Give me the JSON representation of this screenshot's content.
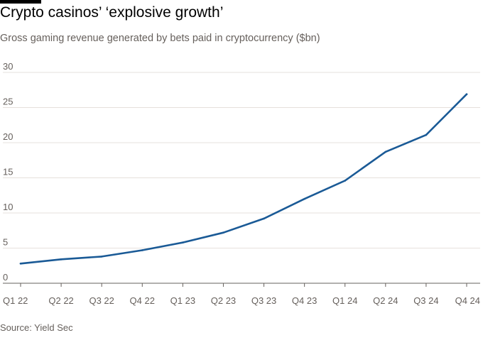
{
  "header": {
    "title": "Crypto casinos’ ‘explosive growth’",
    "subtitle": "Gross gaming revenue generated by bets paid in cryptocurrency ($bn)"
  },
  "footer": {
    "source": "Source: Yield Sec"
  },
  "colors": {
    "line": "#1a5a96",
    "gridline": "#e6e0dc",
    "baseline": "#66605c",
    "text": "#66605c"
  },
  "chart_data": {
    "type": "line",
    "title": "Crypto casinos’ ‘explosive growth’",
    "subtitle": "Gross gaming revenue generated by bets paid in cryptocurrency ($bn)",
    "xlabel": "",
    "ylabel": "",
    "categories": [
      "Q1 22",
      "Q2 22",
      "Q3 22",
      "Q4 22",
      "Q1 23",
      "Q2 23",
      "Q3 23",
      "Q4 23",
      "Q1 24",
      "Q2 24",
      "Q3 24",
      "Q4 24"
    ],
    "series": [
      {
        "values": [
          2.8,
          3.4,
          3.8,
          4.7,
          5.8,
          7.2,
          9.2,
          12.0,
          14.6,
          18.7,
          21.1,
          26.9
        ]
      }
    ],
    "ylim": [
      0,
      30
    ],
    "yticks": [
      0,
      5,
      10,
      15,
      20,
      25,
      30
    ],
    "grid": true,
    "legend": "none"
  }
}
